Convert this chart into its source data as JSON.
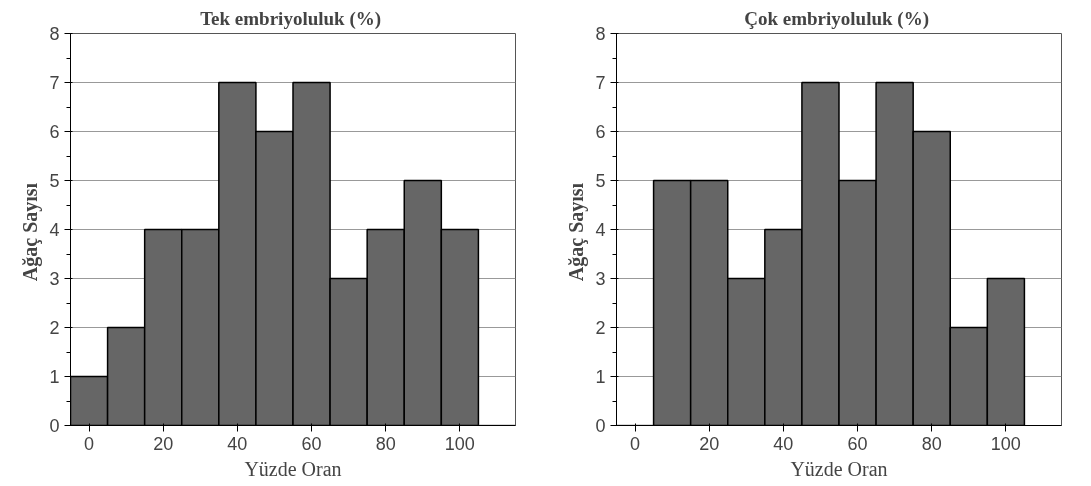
{
  "chart_data": [
    {
      "type": "histogram",
      "title": "Tek embriyoluluk  (%)",
      "xlabel": "Yüzde Oran",
      "ylabel": "Ağaç  Sayısı",
      "bins": [
        -5,
        5,
        15,
        25,
        35,
        45,
        55,
        65,
        75,
        85,
        95,
        105,
        115
      ],
      "values": [
        1,
        2,
        4,
        4,
        7,
        6,
        7,
        3,
        4,
        5,
        4,
        0
      ],
      "color": "#666666",
      "xlim": [
        -5,
        115
      ],
      "xticks": [
        0,
        20,
        40,
        60,
        80,
        100
      ],
      "ylim": [
        0,
        8
      ],
      "yticks": [
        0,
        1,
        2,
        3,
        4,
        5,
        6,
        7,
        8
      ],
      "grid": "y"
    },
    {
      "type": "histogram",
      "title": "Çok embriyoluluk  (%)",
      "xlabel": "Yüzde Oran",
      "ylabel": "Ağaç  Sayısı",
      "bins": [
        -5,
        5,
        15,
        25,
        35,
        45,
        55,
        65,
        75,
        85,
        95,
        105
      ],
      "values": [
        0,
        5,
        5,
        3,
        4,
        7,
        5,
        7,
        6,
        2,
        3
      ],
      "color": "#666666",
      "xlim": [
        -5,
        115
      ],
      "xticks": [
        0,
        20,
        40,
        60,
        80,
        100
      ],
      "ylim": [
        0,
        8
      ],
      "yticks": [
        0,
        1,
        2,
        3,
        4,
        5,
        6,
        7,
        8
      ],
      "grid": "y"
    }
  ]
}
